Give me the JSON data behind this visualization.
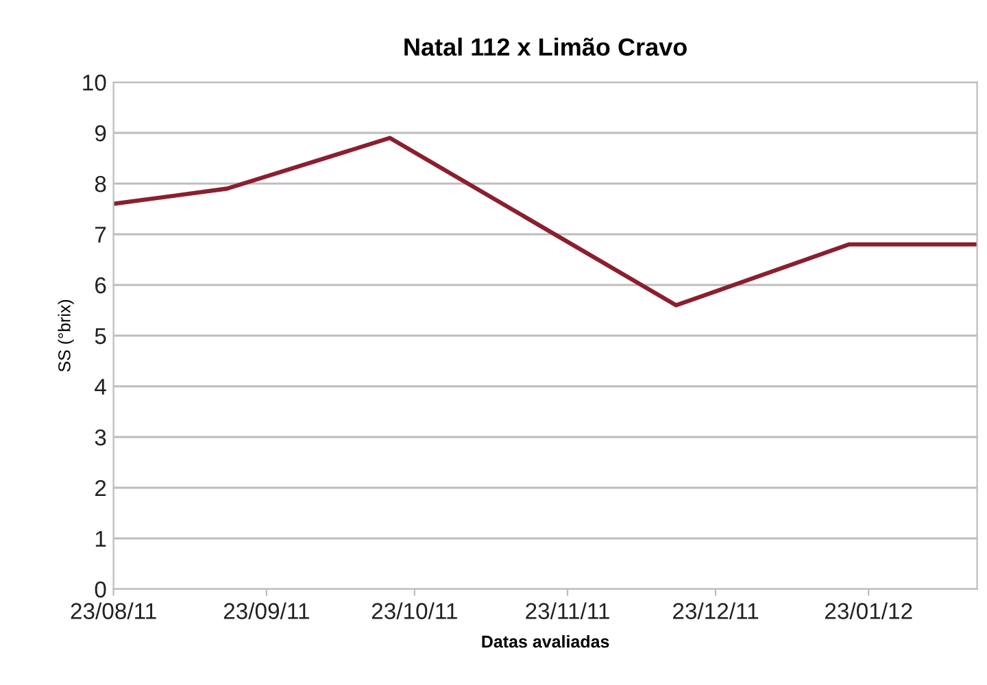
{
  "chart_data": {
    "type": "line",
    "title": "Natal 112 x Limão Cravo",
    "xlabel": "Datas avaliadas",
    "ylabel": "SS (°brix)",
    "x": [
      "2011-08-23",
      "2011-09-15",
      "2011-10-18",
      "2011-12-15",
      "2012-01-19",
      "2012-02-14"
    ],
    "series": [
      {
        "color": "#8b1f2e",
        "values": [
          7.6,
          7.9,
          8.9,
          5.6,
          6.8,
          6.8
        ]
      }
    ],
    "xlim": [
      "2011-08-23",
      "2012-02-14"
    ],
    "xticks": [
      {
        "value": "2011-08-23",
        "label": "23/08/11"
      },
      {
        "value": "2011-09-23",
        "label": "23/09/11"
      },
      {
        "value": "2011-10-23",
        "label": "23/10/11"
      },
      {
        "value": "2011-11-23",
        "label": "23/11/11"
      },
      {
        "value": "2011-12-23",
        "label": "23/12/11"
      },
      {
        "value": "2012-01-23",
        "label": "23/01/12"
      }
    ],
    "ylim": [
      0,
      10
    ],
    "yticks": [
      0,
      1,
      2,
      3,
      4,
      5,
      6,
      7,
      8,
      9,
      10
    ],
    "grid": "y",
    "marker": "none",
    "line_style": "solid"
  }
}
